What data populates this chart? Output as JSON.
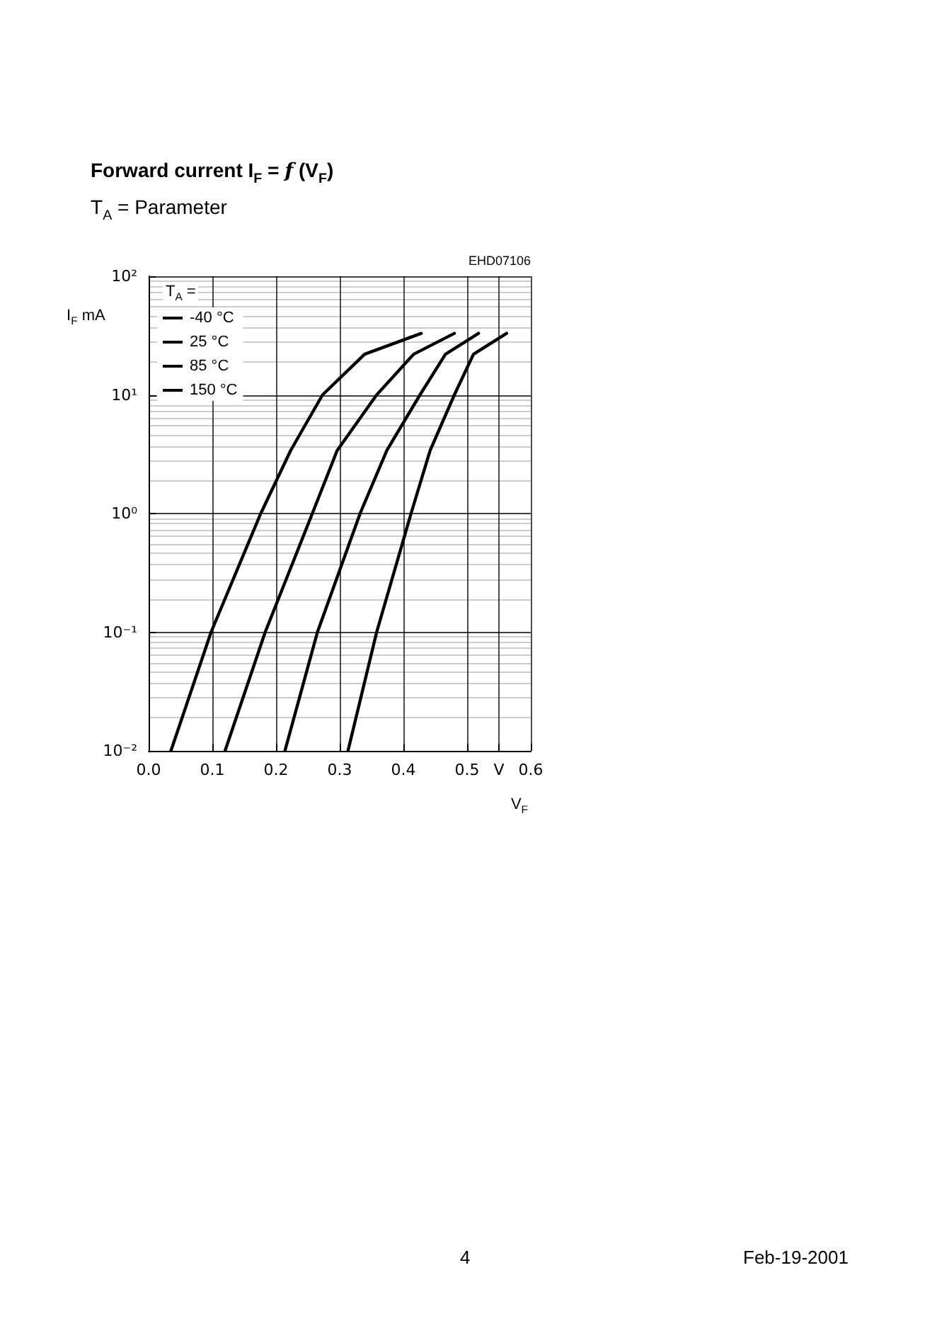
{
  "chart_data": {
    "type": "line",
    "title": "Forward current I$_{F}$ = f (V$_{F}$)",
    "subtitle": "T$_{A}$ = Parameter",
    "xlabel": "V$_{F}$",
    "ylabel": "I$_{F}$ mA",
    "legend_title": "T$_{A}$ =",
    "annotations": [
      "EHD07106",
      "4",
      "Feb-19-2001"
    ],
    "series": [
      {
        "name": "-40 °C",
        "color": "#000000",
        "x": [
          0.313,
          0.358,
          0.412,
          0.442,
          0.48,
          0.51,
          0.562
        ],
        "values": [
          0.01,
          0.1,
          1,
          3.4,
          10,
          22,
          33
        ]
      },
      {
        "name": "25 °C",
        "color": "#000000",
        "x": [
          0.214,
          0.265,
          0.332,
          0.374,
          0.426,
          0.466,
          0.518
        ],
        "values": [
          0.01,
          0.1,
          1,
          3.4,
          10,
          22,
          33
        ]
      },
      {
        "name": "85 °C",
        "color": "#000000",
        "x": [
          0.12,
          0.183,
          0.257,
          0.296,
          0.358,
          0.416,
          0.48
        ],
        "values": [
          0.01,
          0.1,
          1,
          3.4,
          10,
          22,
          33
        ]
      },
      {
        "name": "150 °C",
        "color": "#000000",
        "x": [
          0.035,
          0.098,
          0.176,
          0.223,
          0.273,
          0.339,
          0.428
        ],
        "values": [
          0.01,
          0.1,
          1,
          3.4,
          10,
          22,
          33
        ]
      }
    ],
    "xlim": [
      0,
      0.6
    ],
    "xticks": [
      {
        "value": 0,
        "label": "0.0"
      },
      0.1,
      0.2,
      0.3,
      0.4,
      0.5,
      {
        "value": 0.55,
        "label": "V"
      },
      0.6
    ],
    "ylim": [
      0.01,
      100
    ],
    "yticks": [
      {
        "value": 0.01,
        "label": "10⁻²"
      },
      {
        "value": 0.1,
        "label": "10⁻¹"
      },
      {
        "value": 1,
        "label": "10⁰"
      },
      {
        "value": 10,
        "label": "10¹"
      },
      {
        "value": 100,
        "label": "10²"
      }
    ],
    "log": true,
    "grid": true,
    "legend": "top left",
    "marker": "none",
    "line_style": "solid"
  }
}
